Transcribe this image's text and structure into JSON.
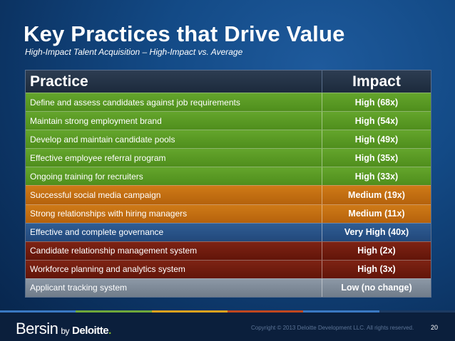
{
  "slide": {
    "title": "Key Practices that Drive Value",
    "subtitle": "High-Impact Talent Acquisition – High-Impact vs. Average"
  },
  "table": {
    "header_practice": "Practice",
    "header_impact": "Impact",
    "rows": [
      {
        "practice": "Define and assess candidates against job requirements",
        "impact": "High (68x)",
        "color": "#5a9a24"
      },
      {
        "practice": "Maintain strong employment brand",
        "impact": "High (54x)",
        "color": "#5a9a24"
      },
      {
        "practice": "Develop and maintain candidate pools",
        "impact": "High (49x)",
        "color": "#5a9a24"
      },
      {
        "practice": "Effective employee referral program",
        "impact": "High (35x)",
        "color": "#5a9a24"
      },
      {
        "practice": "Ongoing training for recruiters",
        "impact": "High (33x)",
        "color": "#5a9a24"
      },
      {
        "practice": "Successful social media campaign",
        "impact": "Medium (19x)",
        "color": "#c46e12"
      },
      {
        "practice": "Strong relationships with hiring managers",
        "impact": "Medium (11x)",
        "color": "#c46e12"
      },
      {
        "practice": "Effective and complete governance",
        "impact": "Very High (40x)",
        "color": "#285287"
      },
      {
        "practice": "Candidate relationship management system",
        "impact": "High (2x)",
        "color": "#701c0e"
      },
      {
        "practice": "Workforce planning and analytics system",
        "impact": "High (3x)",
        "color": "#701c0e"
      },
      {
        "practice": "Applicant tracking system",
        "impact": "Low (no change)",
        "color": "#7e8a98"
      }
    ]
  },
  "footer": {
    "brand": "Bersin",
    "brand_by": "by",
    "brand_partner": "Deloitte",
    "copyright": "Copyright © 2013 Deloitte Development LLC. All rights reserved.",
    "page_number": "20"
  }
}
